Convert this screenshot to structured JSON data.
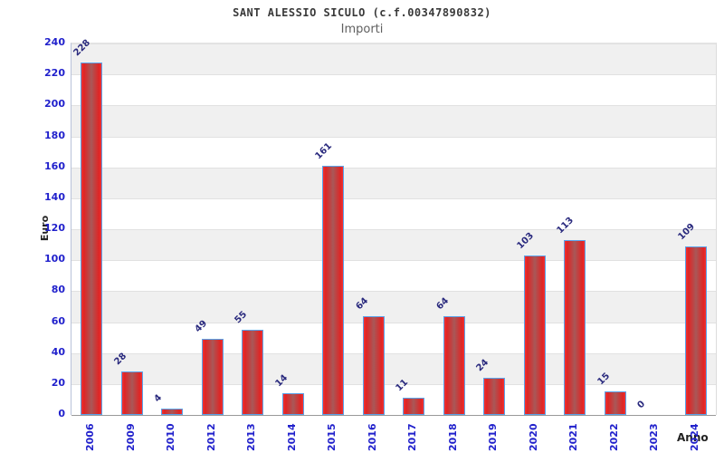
{
  "header": {
    "title": "SANT ALESSIO SICULO (c.f.00347890832)",
    "subtitle": "Importi"
  },
  "chart_data": {
    "type": "bar",
    "title": "SANT ALESSIO SICULO (c.f.00347890832)",
    "subtitle": "Importi",
    "xlabel": "Anno",
    "ylabel": "Euro",
    "categories": [
      "2006",
      "2009",
      "2010",
      "2012",
      "2013",
      "2014",
      "2015",
      "2016",
      "2017",
      "2018",
      "2019",
      "2020",
      "2021",
      "2022",
      "2023",
      "2024"
    ],
    "values": [
      228,
      28,
      4,
      49,
      55,
      14,
      161,
      64,
      11,
      64,
      24,
      103,
      113,
      15,
      0,
      109
    ],
    "ylim": [
      0,
      240
    ],
    "yticks": [
      0,
      20,
      40,
      60,
      80,
      100,
      120,
      140,
      160,
      180,
      200,
      220,
      240
    ],
    "grid": "horizontal-bands-alternating",
    "legend": "none",
    "value_labels": "rotated-45-above-bars",
    "x_tick_rotation": -90
  },
  "colors": {
    "bar_edge": "#f13333",
    "bar_mid": "#a85858",
    "bar_border": "#5ba3ea",
    "tick_text": "#2121cc",
    "value_label_text": "#2a2a7e",
    "band_alt": "#f0f0f0",
    "band_main": "#ffffff",
    "grid_line": "#e1e1e1",
    "axis_line": "#999999",
    "title_text": "#3a3a3a",
    "subtitle_text": "#606060",
    "axis_title_text": "#222222"
  }
}
